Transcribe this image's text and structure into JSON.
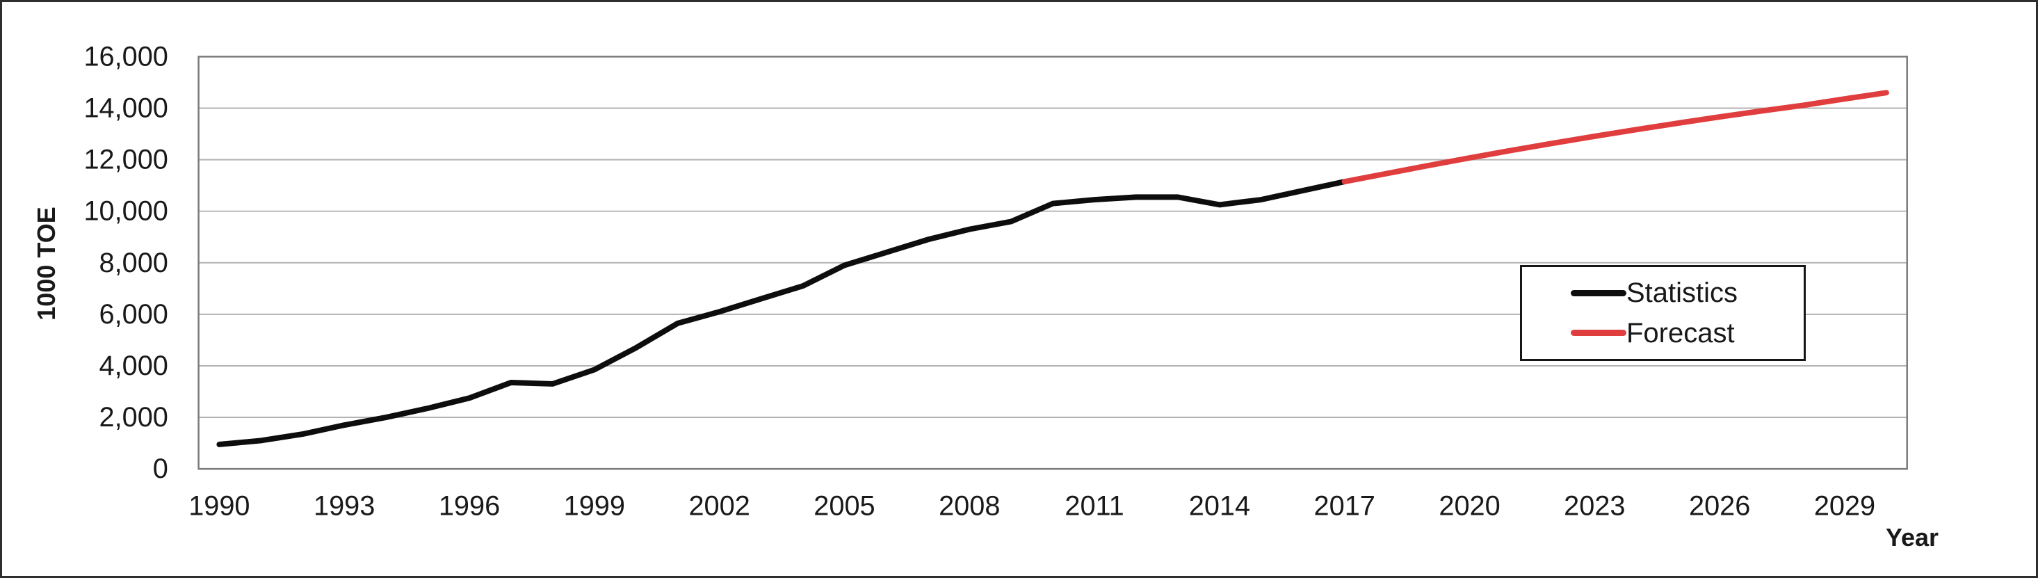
{
  "figure": {
    "type_note": "line chart, statistics vs forecast of energy consumption",
    "background": "#ffffff",
    "border_color": "#2e2e2e"
  },
  "chart_data": {
    "type": "line",
    "title": "",
    "xlabel": "Year",
    "ylabel": "1000 TOE",
    "xlim": [
      1990,
      2030
    ],
    "ylim": [
      0,
      16000
    ],
    "grid": "horizontal",
    "gridline_color": "#b3b3b3",
    "axis_color": "#7a7a7a",
    "legend_position": "middle-right",
    "x_ticks": [
      1990,
      1993,
      1996,
      1999,
      2002,
      2005,
      2008,
      2011,
      2014,
      2017,
      2020,
      2023,
      2026,
      2029
    ],
    "x_tick_labels": [
      "1990",
      "1993",
      "1996",
      "1999",
      "2002",
      "2005",
      "2008",
      "2011",
      "2014",
      "2017",
      "2020",
      "2023",
      "2026",
      "2029"
    ],
    "y_ticks": [
      0,
      2000,
      4000,
      6000,
      8000,
      10000,
      12000,
      14000,
      16000
    ],
    "y_tick_labels": [
      "0",
      "2,000",
      "4,000",
      "6,000",
      "8,000",
      "10,000",
      "12,000",
      "14,000",
      "16,000"
    ],
    "series": [
      {
        "name": "Statistics",
        "color": "#0d0d0d",
        "x": [
          1990,
          1991,
          1992,
          1993,
          1994,
          1995,
          1996,
          1997,
          1998,
          1999,
          2000,
          2001,
          2002,
          2003,
          2004,
          2005,
          2006,
          2007,
          2008,
          2009,
          2010,
          2011,
          2012,
          2013,
          2014,
          2015,
          2016,
          2017
        ],
        "values": [
          950,
          1100,
          1350,
          1700,
          2000,
          2350,
          2750,
          3350,
          3300,
          3850,
          4700,
          5650,
          6100,
          6600,
          7100,
          7900,
          8400,
          8900,
          9300,
          9600,
          10300,
          10450,
          10550,
          10550,
          10250,
          10450,
          10800,
          11150
        ]
      },
      {
        "name": "Forecast",
        "color": "#e03e3e",
        "x": [
          2017,
          2018,
          2019,
          2020,
          2021,
          2022,
          2023,
          2024,
          2025,
          2026,
          2027,
          2028,
          2029,
          2030
        ],
        "values": [
          11150,
          11460,
          11770,
          12070,
          12360,
          12640,
          12910,
          13170,
          13420,
          13660,
          13890,
          14110,
          14360,
          14600
        ]
      }
    ]
  }
}
